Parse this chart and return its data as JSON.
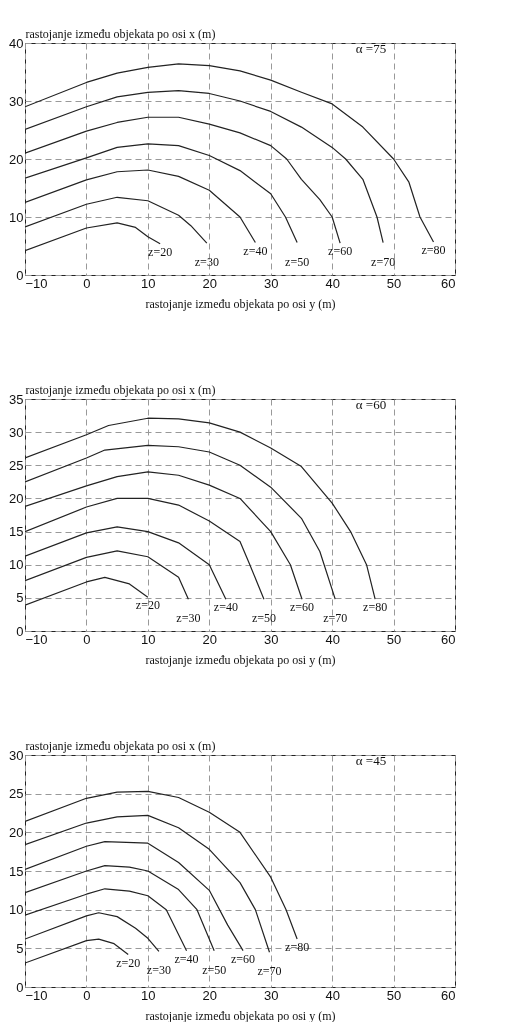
{
  "chart_data": [
    {
      "type": "line",
      "ylabel": "rastojanje između objekata po osi x (m)",
      "xlabel": "rastojanje između objekata po osi y (m)",
      "xlim": [
        -10,
        60
      ],
      "xticks": [
        -10,
        0,
        10,
        20,
        30,
        40,
        50,
        60
      ],
      "ylim": [
        0,
        40
      ],
      "yticks": [
        0,
        10,
        20,
        30,
        40
      ],
      "grid": true,
      "annotations": [
        "α =75"
      ],
      "series": [
        {
          "name": "z=20",
          "color": "#222222",
          "x": [
            -10,
            0,
            5,
            8,
            10,
            12
          ],
          "values": [
            4.2,
            8.1,
            9,
            8.2,
            6.6,
            5.4
          ]
        },
        {
          "name": "z=30",
          "color": "#222222",
          "x": [
            -10,
            0,
            5,
            10,
            15,
            17,
            19.6
          ],
          "values": [
            8.3,
            12.2,
            13.4,
            12.8,
            10.3,
            8.5,
            5.5
          ]
        },
        {
          "name": "z=40",
          "color": "#222222",
          "x": [
            -10,
            0,
            5,
            10,
            15,
            20,
            25,
            27.5
          ],
          "values": [
            12.5,
            16.4,
            17.8,
            18.1,
            17,
            14.6,
            10,
            5.6
          ]
        },
        {
          "name": "z=50",
          "color": "#222222",
          "x": [
            -10,
            0,
            5,
            10,
            15,
            20,
            25,
            30,
            32.4,
            34.3
          ],
          "values": [
            16.7,
            20.2,
            22,
            22.6,
            22.3,
            20.6,
            18,
            14,
            10,
            5.6
          ]
        },
        {
          "name": "z=60",
          "color": "#222222",
          "x": [
            -10,
            0,
            5,
            10,
            15,
            20,
            25,
            30,
            32.6,
            35,
            38,
            40,
            41.3
          ],
          "values": [
            21,
            24.8,
            26.3,
            27.2,
            27.2,
            26,
            24.5,
            22.3,
            20,
            16.5,
            13,
            10,
            5.5
          ]
        },
        {
          "name": "z=70",
          "color": "#222222",
          "x": [
            -10,
            0,
            5,
            10,
            15,
            20,
            25,
            30,
            35,
            40,
            42.2,
            45,
            47.3,
            48.3
          ],
          "values": [
            25.1,
            29,
            30.7,
            31.5,
            31.8,
            31.3,
            30,
            28.2,
            25.5,
            22,
            20,
            16.5,
            10,
            5.6
          ]
        },
        {
          "name": "z=80",
          "color": "#222222",
          "x": [
            -10,
            0,
            5,
            10,
            15,
            20,
            25,
            30,
            35,
            40,
            45,
            50,
            52.5,
            54.3,
            56.5
          ],
          "values": [
            29,
            33.2,
            34.8,
            35.8,
            36.4,
            36.1,
            35.2,
            33.6,
            31.5,
            29.5,
            25.5,
            20,
            16,
            10,
            5.7
          ]
        }
      ]
    },
    {
      "type": "line",
      "ylabel": "rastojanje između objekata po osi x (m)",
      "xlabel": "rastojanje između objekata po osi y (m)",
      "xlim": [
        -10,
        60
      ],
      "xticks": [
        -10,
        0,
        10,
        20,
        30,
        40,
        50,
        60
      ],
      "ylim": [
        0,
        35
      ],
      "yticks": [
        0,
        5,
        10,
        15,
        20,
        25,
        30,
        35
      ],
      "grid": true,
      "annotations": [
        "α =60"
      ],
      "series": [
        {
          "name": "z=20",
          "color": "#222222",
          "x": [
            -10,
            0,
            3,
            7,
            10
          ],
          "values": [
            3.9,
            7.4,
            8.1,
            7.1,
            5.1
          ]
        },
        {
          "name": "z=30",
          "color": "#222222",
          "x": [
            -10,
            0,
            5,
            10,
            15,
            16.6
          ],
          "values": [
            7.6,
            11.1,
            12.1,
            11.2,
            8.1,
            4.8
          ]
        },
        {
          "name": "z=40",
          "color": "#222222",
          "x": [
            -10,
            0,
            5,
            10,
            15,
            20,
            22.7
          ],
          "values": [
            11.3,
            14.8,
            15.7,
            15,
            13.3,
            10,
            4.8
          ]
        },
        {
          "name": "z=50",
          "color": "#222222",
          "x": [
            -10,
            0,
            5,
            10,
            15,
            20,
            25,
            26.6,
            28.9
          ],
          "values": [
            15,
            18.7,
            20,
            20,
            19,
            16.6,
            13.5,
            10,
            4.8
          ]
        },
        {
          "name": "z=60",
          "color": "#222222",
          "x": [
            -10,
            0,
            5,
            10,
            15,
            20,
            25,
            30,
            33.2,
            35.1
          ],
          "values": [
            18.8,
            21.9,
            23.3,
            24,
            23.5,
            22,
            20,
            15,
            10,
            4.8
          ]
        },
        {
          "name": "z=70",
          "color": "#222222",
          "x": [
            -10,
            0,
            3,
            10,
            15,
            20,
            25,
            30,
            35,
            38,
            40.5
          ],
          "values": [
            22.5,
            26.1,
            27.3,
            28,
            27.8,
            27,
            25,
            21.7,
            17,
            12,
            4.8
          ]
        },
        {
          "name": "z=80",
          "color": "#222222",
          "x": [
            -10,
            0,
            3.6,
            10,
            15,
            20,
            25,
            30,
            35,
            40,
            43,
            45.6,
            47
          ],
          "values": [
            26.1,
            29.6,
            31,
            32.1,
            32,
            31.4,
            30,
            27.6,
            24.8,
            19.3,
            15,
            10,
            4.8
          ]
        }
      ]
    },
    {
      "type": "line",
      "ylabel": "rastojanje između objekata po osi x (m)",
      "xlabel": "rastojanje između objekata po osi y (m)",
      "xlim": [
        -10,
        60
      ],
      "xticks": [
        -10,
        0,
        10,
        20,
        30,
        40,
        50,
        60
      ],
      "ylim": [
        0,
        30
      ],
      "yticks": [
        0,
        5,
        10,
        15,
        20,
        25,
        30
      ],
      "grid": true,
      "annotations": [
        "α =45"
      ],
      "series": [
        {
          "name": "z=20",
          "color": "#222222",
          "x": [
            -10,
            0,
            2,
            4.5,
            6.8
          ],
          "values": [
            3.1,
            6,
            6.2,
            5.6,
            4.2
          ]
        },
        {
          "name": "z=30",
          "color": "#222222",
          "x": [
            -10,
            0,
            2,
            5,
            8,
            10,
            11.8
          ],
          "values": [
            6.2,
            9.2,
            9.6,
            9.1,
            7.6,
            6.3,
            4.6
          ]
        },
        {
          "name": "z=40",
          "color": "#222222",
          "x": [
            -10,
            0,
            3,
            7,
            10,
            13,
            16.3
          ],
          "values": [
            9.3,
            12,
            12.7,
            12.4,
            11.8,
            10,
            4.7
          ]
        },
        {
          "name": "z=50",
          "color": "#222222",
          "x": [
            -10,
            0,
            3,
            7,
            10,
            15,
            18,
            20.8
          ],
          "values": [
            12.2,
            15,
            15.7,
            15.5,
            15,
            12.6,
            10,
            4.7
          ]
        },
        {
          "name": "z=60",
          "color": "#222222",
          "x": [
            -10,
            0,
            3,
            10,
            15,
            20,
            23,
            25.5
          ],
          "values": [
            15.2,
            18.2,
            18.8,
            18.6,
            16.1,
            12.5,
            8,
            4.7
          ]
        },
        {
          "name": "z=70",
          "color": "#222222",
          "x": [
            -10,
            0,
            5,
            10,
            15,
            20,
            25,
            27.5,
            29.8
          ],
          "values": [
            18.4,
            21.2,
            22,
            22.2,
            20.6,
            17.8,
            13.5,
            10,
            4.5
          ]
        },
        {
          "name": "z=80",
          "color": "#222222",
          "x": [
            -10,
            0,
            5,
            10,
            15,
            20,
            25,
            30,
            32.5,
            34.3
          ],
          "values": [
            21.4,
            24.4,
            25.2,
            25.3,
            24.5,
            22.6,
            20,
            14.2,
            10,
            6.2
          ]
        }
      ]
    }
  ]
}
